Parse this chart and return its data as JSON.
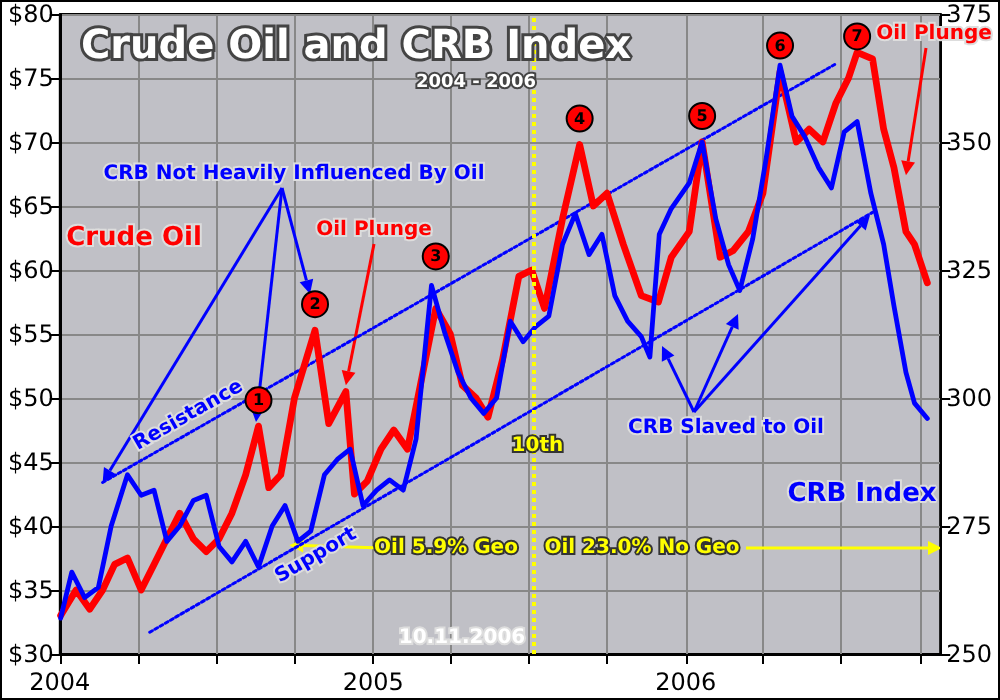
{
  "chart_data": {
    "type": "line",
    "title": "Crude Oil and CRB Index",
    "subtitle": "2004 - 2006",
    "xlim": [
      "2004-01-01",
      "2006-10-25"
    ],
    "xticks": [
      "2004",
      {
        "value": "2004-04",
        "label": null
      },
      {
        "value": "2004-07",
        "label": null
      },
      {
        "value": "2004-10",
        "label": null
      },
      "2005",
      {
        "value": "2005-04",
        "label": null
      },
      {
        "value": "2005-07",
        "label": null
      },
      {
        "value": "2005-10",
        "label": null
      },
      "2006",
      {
        "value": "2006-04",
        "label": null
      },
      {
        "value": "2006-07",
        "label": null
      },
      {
        "value": "2006-10",
        "label": null
      }
    ],
    "ylim": [
      30,
      80
    ],
    "yticks": [
      {
        "value": 30,
        "label": "$30"
      },
      {
        "value": 35,
        "label": "$35"
      },
      {
        "value": 40,
        "label": "$40"
      },
      {
        "value": 45,
        "label": "$45"
      },
      {
        "value": 50,
        "label": "$50"
      },
      {
        "value": 55,
        "label": "$55"
      },
      {
        "value": 60,
        "label": "$60"
      },
      {
        "value": 65,
        "label": "$65"
      },
      {
        "value": 70,
        "label": "$70"
      },
      {
        "value": 75,
        "label": "$75"
      },
      {
        "value": 80,
        "label": "$80"
      }
    ],
    "y2lim": [
      250,
      375
    ],
    "y2ticks": [
      250,
      275,
      300,
      325,
      350,
      375
    ],
    "grid": true,
    "marker": "none",
    "line_style": "solid",
    "series": [
      {
        "name": "Crude Oil",
        "color": "#ff0000",
        "x": [
          "2004-01-02",
          "2004-01-20",
          "2004-02-05",
          "2004-02-20",
          "2004-03-05",
          "2004-03-20",
          "2004-04-05",
          "2004-04-20",
          "2004-05-05",
          "2004-05-20",
          "2004-06-05",
          "2004-06-20",
          "2004-07-05",
          "2004-07-20",
          "2004-08-05",
          "2004-08-20",
          "2004-09-01",
          "2004-09-15",
          "2004-10-01",
          "2004-10-25",
          "2004-11-10",
          "2004-11-30",
          "2004-12-10",
          "2004-12-25",
          "2005-01-10",
          "2005-01-25",
          "2005-02-10",
          "2005-02-25",
          "2005-03-15",
          "2005-04-01",
          "2005-04-15",
          "2005-05-01",
          "2005-05-15",
          "2005-06-01",
          "2005-06-20",
          "2005-07-05",
          "2005-07-20",
          "2005-08-10",
          "2005-08-30",
          "2005-09-15",
          "2005-10-01",
          "2005-10-20",
          "2005-11-10",
          "2005-11-30",
          "2005-12-15",
          "2006-01-05",
          "2006-01-20",
          "2006-02-10",
          "2006-02-25",
          "2006-03-15",
          "2006-04-01",
          "2006-04-21",
          "2006-05-10",
          "2006-05-25",
          "2006-06-10",
          "2006-06-25",
          "2006-07-10",
          "2006-07-20",
          "2006-08-07",
          "2006-08-20",
          "2006-09-01",
          "2006-09-15",
          "2006-09-25",
          "2006-10-10"
        ],
        "values": [
          33,
          35,
          33.5,
          35,
          37,
          37.5,
          35,
          37,
          39,
          41,
          39,
          38,
          39,
          41,
          44,
          47.8,
          43,
          44,
          50,
          55.3,
          48,
          50.5,
          42.5,
          43.5,
          46,
          47.5,
          46,
          51,
          57,
          55,
          51,
          50,
          48.5,
          53,
          59.5,
          60,
          57,
          64,
          69.8,
          65,
          66,
          62,
          58,
          57.5,
          61,
          63,
          70,
          61,
          61.5,
          63,
          66,
          75.5,
          70,
          71,
          70,
          73,
          75,
          77,
          76.5,
          71,
          68,
          63,
          62,
          59
        ]
      },
      {
        "name": "CRB Index",
        "color": "#0000ff",
        "axis": "y2",
        "x": [
          "2004-01-02",
          "2004-01-15",
          "2004-01-30",
          "2004-02-15",
          "2004-03-01",
          "2004-03-20",
          "2004-04-05",
          "2004-04-20",
          "2004-05-05",
          "2004-05-20",
          "2004-06-05",
          "2004-06-20",
          "2004-07-05",
          "2004-07-20",
          "2004-08-05",
          "2004-08-20",
          "2004-09-05",
          "2004-09-20",
          "2004-10-05",
          "2004-10-20",
          "2004-11-05",
          "2004-11-20",
          "2004-12-05",
          "2004-12-20",
          "2005-01-05",
          "2005-01-20",
          "2005-02-05",
          "2005-02-20",
          "2005-03-10",
          "2005-03-25",
          "2005-04-10",
          "2005-04-25",
          "2005-05-10",
          "2005-05-25",
          "2005-06-10",
          "2005-06-25",
          "2005-07-10",
          "2005-07-25",
          "2005-08-10",
          "2005-08-25",
          "2005-09-10",
          "2005-09-25",
          "2005-10-10",
          "2005-10-25",
          "2005-11-10",
          "2005-11-20",
          "2005-12-01",
          "2005-12-15",
          "2006-01-05",
          "2006-01-20",
          "2006-02-05",
          "2006-02-20",
          "2006-03-05",
          "2006-03-20",
          "2006-04-05",
          "2006-04-21",
          "2006-05-05",
          "2006-05-20",
          "2006-06-05",
          "2006-06-20",
          "2006-07-05",
          "2006-07-20",
          "2006-08-05",
          "2006-08-20",
          "2006-09-01",
          "2006-09-15",
          "2006-09-25",
          "2006-10-10"
        ],
        "values": [
          257,
          266,
          261,
          263,
          275,
          285,
          281,
          282,
          272,
          275,
          280,
          281,
          271,
          268,
          272,
          267,
          275,
          279,
          272,
          274,
          285,
          288,
          290,
          279,
          282,
          284,
          282,
          292,
          322,
          313,
          305,
          300,
          297,
          300,
          315,
          311,
          314,
          316,
          330,
          336,
          328,
          332,
          320,
          315,
          312,
          308,
          332,
          337,
          342,
          350,
          335,
          326,
          321,
          331,
          347,
          365,
          355,
          351,
          345,
          341,
          352,
          354,
          340,
          330,
          318,
          305,
          299,
          296
        ]
      },
      {
        "name": "Resistance",
        "color": "#0000ff",
        "line_style": "dotted",
        "x": [
          "2004-02-20",
          "2006-06-25"
        ],
        "values": [
          43.4,
          76.1
        ]
      },
      {
        "name": "Support",
        "color": "#0000ff",
        "line_style": "dotted",
        "x": [
          "2004-04-15",
          "2006-08-07"
        ],
        "values": [
          31.7,
          64.5
        ]
      }
    ],
    "ref_lines": [
      {
        "axis": "x",
        "value": "2005-07-07",
        "label": "10th",
        "color": "#ffff00",
        "line_style": "dotted"
      }
    ],
    "annotations": [
      {
        "text": "CRB Not Heavily Influenced By Oil",
        "x": "2004-02-20",
        "y": 43.4
      },
      {
        "text": "Oil Plunge",
        "x": "2004-11-30",
        "y": 51
      },
      {
        "text": "Oil Plunge",
        "x": "2006-09-15",
        "y": 67.4
      },
      {
        "text": "CRB Slaved to Oil",
        "x": "2006-08-07",
        "y": 64.5
      },
      {
        "text": "Oil 5.9% Geo",
        "x": "2004-09-25",
        "y": 38.5
      },
      "Oil 23.0% No Geo",
      "10.11.2006",
      {
        "text": "1",
        "x": "2004-08-20",
        "y": 47.8
      },
      {
        "text": "2",
        "x": "2004-10-25",
        "y": 55.3
      },
      {
        "text": "3",
        "x": "2005-03-15",
        "y": 57
      },
      {
        "text": "4",
        "x": "2005-08-30",
        "y": 69.8
      },
      {
        "text": "5",
        "x": "2006-01-20",
        "y": 70
      },
      {
        "text": "6",
        "x": "2006-04-21",
        "y": 75.5
      },
      {
        "text": "7",
        "x": "2006-07-20",
        "y": 77
      }
    ]
  }
}
